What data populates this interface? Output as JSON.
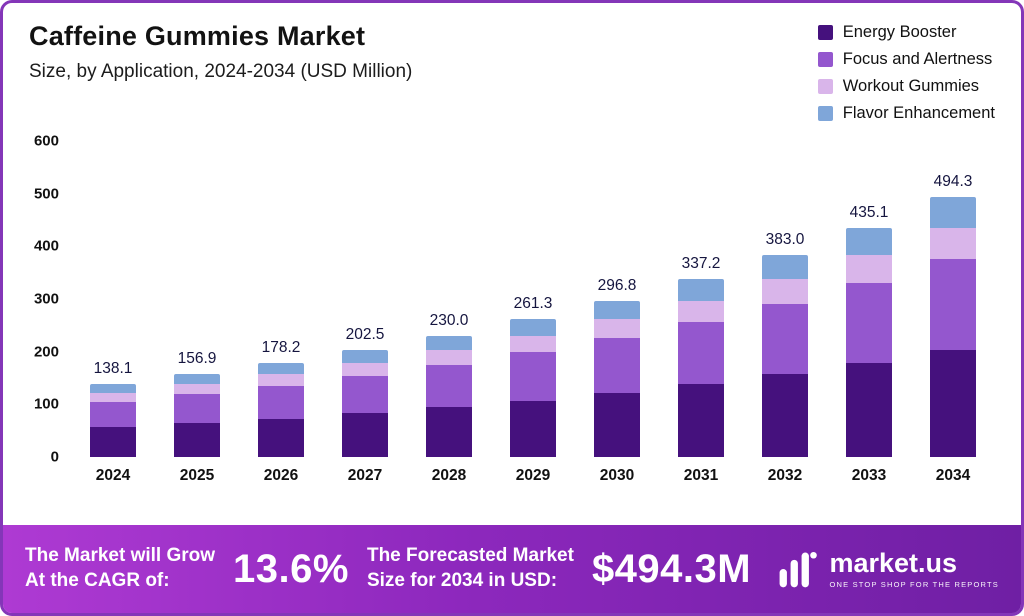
{
  "header": {
    "title": "Caffeine Gummies Market",
    "subtitle": "Size, by Application, 2024-2034 (USD Million)"
  },
  "chart_data": {
    "type": "bar",
    "stacked": true,
    "title": "Caffeine Gummies Market",
    "subtitle": "Size, by Application, 2024-2034 (USD Million)",
    "unit": "USD Million",
    "categories": [
      "2024",
      "2025",
      "2026",
      "2027",
      "2028",
      "2029",
      "2030",
      "2031",
      "2032",
      "2033",
      "2034"
    ],
    "series": [
      {
        "name": "Energy Booster",
        "color": "#45117d",
        "values": [
          56.6,
          64.3,
          73.1,
          83.0,
          94.3,
          107.1,
          121.7,
          138.3,
          157.0,
          178.4,
          202.7
        ]
      },
      {
        "name": "Focus and Alertness",
        "color": "#9457ce",
        "values": [
          48.3,
          54.9,
          62.4,
          70.9,
          80.5,
          91.5,
          103.9,
          118.0,
          134.1,
          152.3,
          173.0
        ]
      },
      {
        "name": "Workout Gummies",
        "color": "#d9b5ea",
        "values": [
          16.6,
          18.8,
          21.4,
          24.3,
          27.6,
          31.4,
          35.6,
          40.5,
          46.0,
          52.2,
          59.3
        ]
      },
      {
        "name": "Flavor Enhancement",
        "color": "#7fa6d9",
        "values": [
          16.6,
          18.9,
          21.3,
          24.3,
          27.6,
          31.3,
          35.6,
          40.4,
          45.9,
          52.2,
          59.3
        ]
      }
    ],
    "totals": [
      "138.1",
      "156.9",
      "178.2",
      "202.5",
      "230.0",
      "261.3",
      "296.8",
      "337.2",
      "383.0",
      "435.1",
      "494.3"
    ],
    "ylim": [
      0,
      600
    ],
    "yticks": [
      0,
      100,
      200,
      300,
      400,
      500,
      600
    ],
    "grid": false,
    "legend_position": "top-right"
  },
  "footer": {
    "cagr_label_line1": "The Market will Grow",
    "cagr_label_line2": "At the CAGR of:",
    "cagr_value": "13.6%",
    "forecast_label_line1": "The Forecasted Market",
    "forecast_label_line2": "Size for 2034 in USD:",
    "forecast_value": "$494.3M",
    "brand": "market.us",
    "brand_tagline": "ONE STOP SHOP FOR THE REPORTS"
  },
  "icons": {
    "logo": "market-us-bars-logo"
  }
}
